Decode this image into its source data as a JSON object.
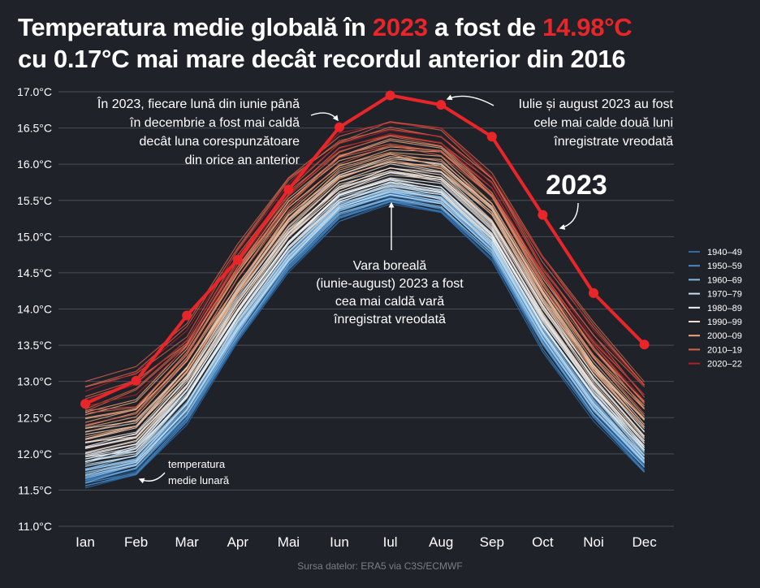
{
  "title": {
    "line1_a": "Temperatura medie globală în ",
    "line1_year": "2023",
    "line1_b": " a fost de ",
    "line1_temp": "14.98°C",
    "line2": "cu 0.17°C mai mare decât recordul anterior din 2016"
  },
  "source": "Sursa datelor: ERA5 via C3S/ECMWF",
  "colors": {
    "background": "#1f2329",
    "highlight": "#e8262a",
    "grid": "#4a4f57"
  },
  "annotations": {
    "june_dec": [
      "În 2023, fiecare lună din iunie până",
      "în decembrie a fost mai caldă",
      "decât luna corespunzătoare",
      "din orice an anterior"
    ],
    "jul_aug": [
      "Iulie și august 2023 au fost",
      "cele mai calde două luni",
      "înregistrate vreodată"
    ],
    "year_label": "2023",
    "summer": [
      "Vara boreală",
      "(iunie-august) 2023 a fost",
      "cea mai caldă vară",
      "înregistrat vreodată"
    ],
    "monthly": [
      "temperatura",
      "medie lunară"
    ]
  },
  "chart_data": {
    "type": "line",
    "x": [
      "Ian",
      "Feb",
      "Mar",
      "Apr",
      "Mai",
      "Iun",
      "Iul",
      "Aug",
      "Sep",
      "Oct",
      "Noi",
      "Dec"
    ],
    "ylim": [
      11.0,
      17.0
    ],
    "yticks": [
      "11.0°C",
      "11.5°C",
      "12.0°C",
      "12.5°C",
      "13.0°C",
      "13.5°C",
      "14.0°C",
      "14.5°C",
      "15.0°C",
      "15.5°C",
      "16.0°C",
      "16.5°C",
      "17.0°C"
    ],
    "grid": true,
    "legend_position": "right",
    "legend": [
      {
        "name": "1940–49",
        "color": "#2d6aa8"
      },
      {
        "name": "1950–59",
        "color": "#4a8ac4"
      },
      {
        "name": "1960–69",
        "color": "#86b9df"
      },
      {
        "name": "1970–79",
        "color": "#c6def0"
      },
      {
        "name": "1980–89",
        "color": "#f2f2f2"
      },
      {
        "name": "1990–99",
        "color": "#f5dcc9"
      },
      {
        "name": "2000–09",
        "color": "#eea77f"
      },
      {
        "name": "2010–19",
        "color": "#d8604a"
      },
      {
        "name": "2020–22",
        "color": "#b51d25"
      }
    ],
    "decade_envelopes": [
      {
        "decade": "1940–49",
        "low": [
          11.52,
          11.7,
          12.4,
          13.55,
          14.5,
          15.2,
          15.45,
          15.3,
          14.65,
          13.4,
          12.45,
          11.72
        ],
        "high": [
          11.72,
          11.9,
          12.65,
          13.75,
          14.7,
          15.4,
          15.62,
          15.52,
          14.9,
          13.7,
          12.72,
          11.92
        ]
      },
      {
        "decade": "1950–59",
        "low": [
          11.55,
          11.72,
          12.45,
          13.58,
          14.55,
          15.25,
          15.48,
          15.35,
          14.7,
          13.45,
          12.5,
          11.75
        ],
        "high": [
          11.8,
          11.98,
          12.72,
          13.82,
          14.78,
          15.45,
          15.68,
          15.58,
          14.95,
          13.75,
          12.78,
          11.98
        ]
      },
      {
        "decade": "1960–69",
        "low": [
          11.6,
          11.78,
          12.5,
          13.62,
          14.6,
          15.3,
          15.52,
          15.4,
          14.75,
          13.52,
          12.55,
          11.8
        ],
        "high": [
          11.9,
          12.05,
          12.8,
          13.9,
          14.85,
          15.5,
          15.72,
          15.62,
          15.0,
          13.82,
          12.85,
          12.05
        ]
      },
      {
        "decade": "1970–79",
        "low": [
          11.7,
          11.85,
          12.6,
          13.7,
          14.65,
          15.35,
          15.58,
          15.45,
          14.82,
          13.6,
          12.62,
          11.88
        ],
        "high": [
          12.0,
          12.15,
          12.9,
          14.0,
          14.95,
          15.58,
          15.82,
          15.7,
          15.08,
          13.9,
          12.95,
          12.15
        ]
      },
      {
        "decade": "1980–89",
        "low": [
          11.85,
          12.0,
          12.75,
          13.85,
          14.8,
          15.48,
          15.7,
          15.58,
          14.95,
          13.75,
          12.78,
          12.02
        ],
        "high": [
          12.15,
          12.3,
          13.05,
          14.15,
          15.1,
          15.72,
          15.95,
          15.85,
          15.22,
          14.05,
          13.1,
          12.3
        ]
      },
      {
        "decade": "1990–99",
        "low": [
          12.0,
          12.15,
          12.9,
          14.0,
          14.95,
          15.62,
          15.85,
          15.75,
          15.1,
          13.9,
          12.92,
          12.15
        ],
        "high": [
          12.35,
          12.5,
          13.25,
          14.35,
          15.3,
          15.9,
          16.12,
          16.02,
          15.42,
          14.25,
          13.28,
          12.5
        ]
      },
      {
        "decade": "2000–09",
        "low": [
          12.2,
          12.35,
          13.1,
          14.2,
          15.15,
          15.8,
          16.02,
          15.92,
          15.3,
          14.1,
          13.1,
          12.35
        ],
        "high": [
          12.6,
          12.75,
          13.5,
          14.6,
          15.55,
          16.12,
          16.35,
          16.25,
          15.65,
          14.48,
          13.48,
          12.72
        ]
      },
      {
        "decade": "2010–19",
        "low": [
          12.4,
          12.55,
          13.3,
          14.4,
          15.35,
          16.0,
          16.22,
          16.12,
          15.5,
          14.3,
          13.3,
          12.55
        ],
        "high": [
          13.0,
          13.3,
          13.8,
          14.9,
          15.85,
          16.4,
          16.62,
          16.5,
          15.9,
          14.8,
          13.82,
          13.05
        ]
      },
      {
        "decade": "2020–22",
        "low": [
          12.6,
          12.8,
          13.45,
          14.55,
          15.5,
          16.15,
          16.38,
          16.28,
          15.65,
          14.45,
          13.45,
          12.7
        ],
        "high": [
          12.95,
          13.15,
          13.75,
          14.85,
          15.8,
          16.45,
          16.6,
          16.52,
          15.85,
          14.75,
          13.72,
          13.0
        ]
      }
    ],
    "series": [
      {
        "name": "2023",
        "color": "#e8262a",
        "values": [
          12.69,
          13.01,
          13.91,
          14.68,
          15.65,
          16.51,
          16.95,
          16.82,
          16.38,
          15.3,
          14.22,
          13.51
        ]
      }
    ]
  }
}
